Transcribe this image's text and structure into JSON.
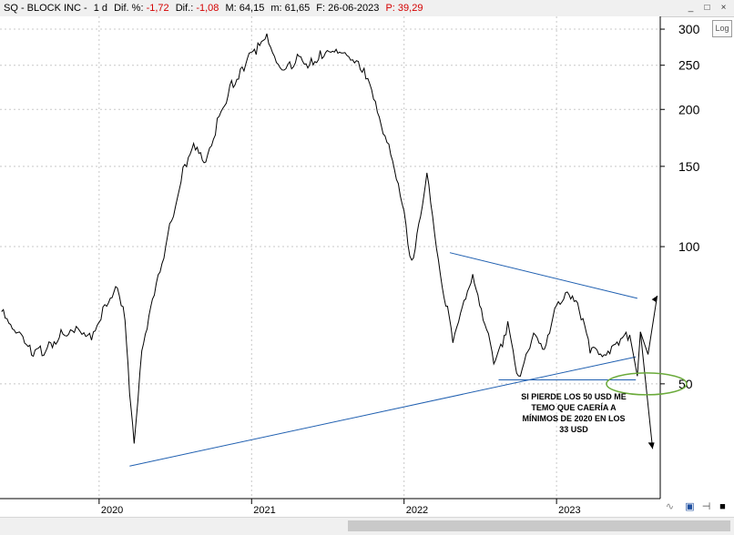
{
  "header": {
    "symbol": "SQ - BLOCK INC -",
    "period": "1 d",
    "dif_pct_label": "Dif. %:",
    "dif_pct_value": "-1,72",
    "dif_label": "Dif.:",
    "dif_value": "-1,08",
    "max_label": "M:",
    "max_value": "64,15",
    "min_label": "m:",
    "min_value": "61,65",
    "date_label": "F:",
    "date_value": "26-06-2023",
    "price_label": "P:",
    "price_value": "39,29",
    "window_buttons": [
      "_",
      "□",
      "×"
    ]
  },
  "toolbar": {
    "log_label": "Log"
  },
  "annotation": {
    "lines": [
      "SI PIERDE LOS 50 USD ME",
      "TEMO QUE CAERÍA A",
      "MÍNIMOS DE 2020 EN LOS",
      "33 USD"
    ]
  },
  "colors": {
    "price": "#000000",
    "trendline": "#1f5fb0",
    "circle": "#6aaa3a",
    "negative": "#d40000"
  },
  "chart_data": {
    "type": "line",
    "scale": "log",
    "ylim": [
      28,
      320
    ],
    "y_ticks": [
      300,
      250,
      200,
      150,
      100,
      50
    ],
    "x_start": 2019.35,
    "x_end": 2023.68,
    "x_ticks": [
      {
        "label": "2020",
        "x": 2020.0
      },
      {
        "label": "2021",
        "x": 2021.0
      },
      {
        "label": "2022",
        "x": 2022.0
      },
      {
        "label": "2023",
        "x": 2023.0
      }
    ],
    "grid": true,
    "series": [
      {
        "x": [
          2019.36,
          2019.42,
          2019.5,
          2019.58,
          2019.66,
          2019.75,
          2019.85,
          2019.95,
          2020.05,
          2020.12,
          2020.17,
          2020.2,
          2020.23,
          2020.28,
          2020.35,
          2020.45,
          2020.55,
          2020.62,
          2020.7,
          2020.8,
          2020.88,
          2020.95,
          2021.03,
          2021.1,
          2021.15,
          2021.2,
          2021.3,
          2021.38,
          2021.45,
          2021.52,
          2021.6,
          2021.65,
          2021.7,
          2021.75,
          2021.8,
          2021.85,
          2021.9,
          2021.95,
          2022.0,
          2022.05,
          2022.12,
          2022.15,
          2022.2,
          2022.25,
          2022.32,
          2022.37,
          2022.45,
          2022.53,
          2022.6,
          2022.68,
          2022.75,
          2022.85,
          2022.92,
          2023.0,
          2023.07,
          2023.15,
          2023.22,
          2023.3,
          2023.35,
          2023.42,
          2023.48
        ],
        "y": [
          72,
          66,
          62,
          58,
          60,
          64,
          67,
          64,
          75,
          83,
          70,
          48,
          36,
          58,
          75,
          105,
          145,
          170,
          155,
          198,
          230,
          250,
          270,
          285,
          255,
          240,
          260,
          250,
          265,
          275,
          270,
          262,
          255,
          240,
          210,
          180,
          165,
          140,
          118,
          92,
          125,
          148,
          108,
          82,
          63,
          70,
          85,
          67,
          55,
          68,
          52,
          65,
          60,
          75,
          80,
          72,
          60,
          56,
          58,
          62,
          64
        ]
      }
    ],
    "trendlines": [
      {
        "from": [
          2020.2,
          33
        ],
        "to": [
          2023.52,
          57.3
        ]
      },
      {
        "from": [
          2022.3,
          97
        ],
        "to": [
          2023.53,
          77
        ]
      },
      {
        "from": [
          2022.62,
          51
        ],
        "to": [
          2023.52,
          51
        ]
      }
    ],
    "projections": [
      {
        "from": [
          2023.48,
          64
        ],
        "to": [
          2023.53,
          52
        ]
      },
      {
        "from": [
          2023.53,
          52
        ],
        "to": [
          2023.55,
          65
        ]
      },
      {
        "from": [
          2023.55,
          65
        ],
        "to": [
          2023.6,
          58
        ]
      },
      {
        "from": [
          2023.6,
          58
        ],
        "to": [
          2023.66,
          78
        ]
      },
      {
        "from": [
          2023.55,
          65
        ],
        "to": [
          2023.63,
          36
        ]
      }
    ],
    "highlight": {
      "x": 2023.59,
      "y": 50
    }
  }
}
